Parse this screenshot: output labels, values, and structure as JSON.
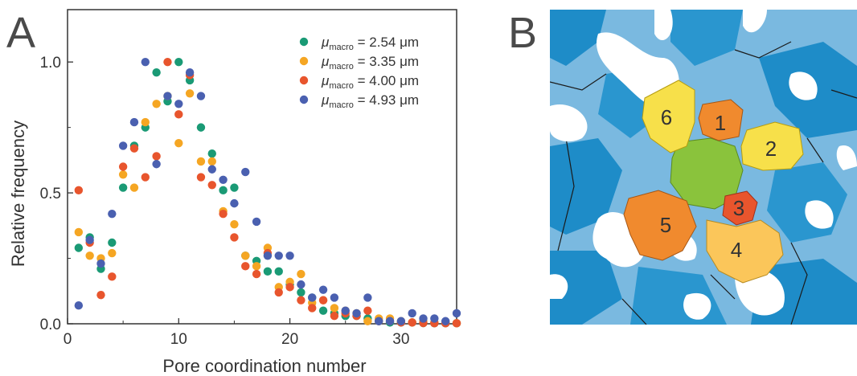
{
  "panels": {
    "a_label": "A",
    "b_label": "B"
  },
  "chart_data": {
    "type": "scatter",
    "xlabel": "Pore coordination number",
    "ylabel": "Relative frequency",
    "xlim": [
      0,
      35
    ],
    "ylim": [
      0,
      1.2
    ],
    "x_ticks": [
      "0",
      "10",
      "20",
      "30"
    ],
    "x_tick_values": [
      0,
      10,
      20,
      30
    ],
    "y_ticks": [
      "0.0",
      "0.5",
      "1.0"
    ],
    "y_tick_values": [
      0,
      0.5,
      1.0
    ],
    "grid": false,
    "legend_position": "top-right",
    "series": [
      {
        "name": "μmacro = 2.54 μm",
        "legend_prefix": "μ",
        "legend_sub": "macro",
        "legend_suffix": " = 2.54 μm",
        "color": "#1a9a75",
        "points": [
          [
            1,
            0.29
          ],
          [
            2,
            0.33
          ],
          [
            3,
            0.21
          ],
          [
            4,
            0.31
          ],
          [
            5,
            0.52
          ],
          [
            6,
            0.68
          ],
          [
            7,
            0.75
          ],
          [
            8,
            0.96
          ],
          [
            9,
            0.85
          ],
          [
            10,
            1.0
          ],
          [
            11,
            0.93
          ],
          [
            12,
            0.75
          ],
          [
            13,
            0.65
          ],
          [
            14,
            0.51
          ],
          [
            15,
            0.52
          ],
          [
            16,
            0.26
          ],
          [
            17,
            0.24
          ],
          [
            18,
            0.2
          ],
          [
            19,
            0.2
          ],
          [
            20,
            0.15
          ],
          [
            21,
            0.12
          ],
          [
            22,
            0.1
          ],
          [
            23,
            0.05
          ],
          [
            24,
            0.04
          ],
          [
            25,
            0.03
          ],
          [
            26,
            0.03
          ],
          [
            27,
            0.02
          ],
          [
            28,
            0.01
          ],
          [
            29,
            0.005
          ],
          [
            30,
            0.005
          ],
          [
            31,
            0.005
          ],
          [
            32,
            0.003
          ],
          [
            33,
            0.002
          ],
          [
            34,
            0.002
          ],
          [
            35,
            0.002
          ]
        ]
      },
      {
        "name": "μmacro = 3.35 μm",
        "legend_prefix": "μ",
        "legend_sub": "macro",
        "legend_suffix": " = 3.35 μm",
        "color": "#f5a623",
        "points": [
          [
            1,
            0.35
          ],
          [
            2,
            0.26
          ],
          [
            3,
            0.25
          ],
          [
            4,
            0.27
          ],
          [
            5,
            0.57
          ],
          [
            6,
            0.52
          ],
          [
            7,
            0.77
          ],
          [
            8,
            0.84
          ],
          [
            9,
            0.87
          ],
          [
            10,
            0.69
          ],
          [
            11,
            0.88
          ],
          [
            12,
            0.62
          ],
          [
            13,
            0.62
          ],
          [
            14,
            0.43
          ],
          [
            15,
            0.38
          ],
          [
            16,
            0.26
          ],
          [
            17,
            0.22
          ],
          [
            18,
            0.29
          ],
          [
            19,
            0.14
          ],
          [
            20,
            0.16
          ],
          [
            21,
            0.19
          ],
          [
            22,
            0.08
          ],
          [
            23,
            0.09
          ],
          [
            24,
            0.06
          ],
          [
            25,
            0.05
          ],
          [
            26,
            0.04
          ],
          [
            27,
            0.01
          ],
          [
            28,
            0.02
          ],
          [
            29,
            0.02
          ],
          [
            30,
            0.01
          ],
          [
            31,
            0.005
          ],
          [
            32,
            0.01
          ],
          [
            33,
            0.005
          ],
          [
            34,
            0.005
          ],
          [
            35,
            0.002
          ]
        ]
      },
      {
        "name": "μmacro = 4.00 μm",
        "legend_prefix": "μ",
        "legend_sub": "macro",
        "legend_suffix": " = 4.00 μm",
        "color": "#e8552d",
        "points": [
          [
            1,
            0.51
          ],
          [
            2,
            0.31
          ],
          [
            3,
            0.11
          ],
          [
            4,
            0.18
          ],
          [
            5,
            0.6
          ],
          [
            6,
            0.67
          ],
          [
            7,
            0.56
          ],
          [
            8,
            0.64
          ],
          [
            9,
            1.0
          ],
          [
            10,
            0.8
          ],
          [
            11,
            0.95
          ],
          [
            12,
            0.56
          ],
          [
            13,
            0.53
          ],
          [
            14,
            0.42
          ],
          [
            15,
            0.33
          ],
          [
            16,
            0.22
          ],
          [
            17,
            0.19
          ],
          [
            18,
            0.27
          ],
          [
            19,
            0.12
          ],
          [
            20,
            0.14
          ],
          [
            21,
            0.09
          ],
          [
            22,
            0.06
          ],
          [
            23,
            0.09
          ],
          [
            24,
            0.03
          ],
          [
            25,
            0.04
          ],
          [
            26,
            0.03
          ],
          [
            27,
            0.05
          ],
          [
            28,
            0.01
          ],
          [
            29,
            0.01
          ],
          [
            30,
            0.005
          ],
          [
            31,
            0.005
          ],
          [
            32,
            0.003
          ],
          [
            33,
            0.002
          ],
          [
            34,
            0.002
          ],
          [
            35,
            0.002
          ]
        ]
      },
      {
        "name": "μmacro = 4.93 μm",
        "legend_prefix": "μ",
        "legend_sub": "macro",
        "legend_suffix": " = 4.93 μm",
        "color": "#4a60b0",
        "points": [
          [
            1,
            0.07
          ],
          [
            2,
            0.32
          ],
          [
            3,
            0.23
          ],
          [
            4,
            0.42
          ],
          [
            5,
            0.68
          ],
          [
            6,
            0.77
          ],
          [
            7,
            1.0
          ],
          [
            8,
            0.61
          ],
          [
            9,
            0.87
          ],
          [
            10,
            0.84
          ],
          [
            11,
            0.96
          ],
          [
            12,
            0.87
          ],
          [
            13,
            0.59
          ],
          [
            14,
            0.55
          ],
          [
            15,
            0.46
          ],
          [
            16,
            0.58
          ],
          [
            17,
            0.39
          ],
          [
            18,
            0.26
          ],
          [
            19,
            0.26
          ],
          [
            20,
            0.26
          ],
          [
            21,
            0.15
          ],
          [
            22,
            0.1
          ],
          [
            23,
            0.13
          ],
          [
            24,
            0.1
          ],
          [
            25,
            0.05
          ],
          [
            26,
            0.04
          ],
          [
            27,
            0.1
          ],
          [
            28,
            0.01
          ],
          [
            29,
            0.01
          ],
          [
            30,
            0.01
          ],
          [
            31,
            0.04
          ],
          [
            32,
            0.02
          ],
          [
            33,
            0.02
          ],
          [
            34,
            0.01
          ],
          [
            35,
            0.04
          ]
        ]
      }
    ]
  },
  "micrograph": {
    "labels": [
      "1",
      "2",
      "3",
      "4",
      "5",
      "6"
    ],
    "colors": {
      "background_light": "#7ab9e0",
      "background_dark": "#1e8cc8",
      "central": "#8ac33c",
      "orange": "#f08a2e",
      "yellow": "#f7e04a",
      "light_orange": "#fbc65a",
      "red_orange": "#e8552d",
      "white": "#ffffff"
    }
  }
}
